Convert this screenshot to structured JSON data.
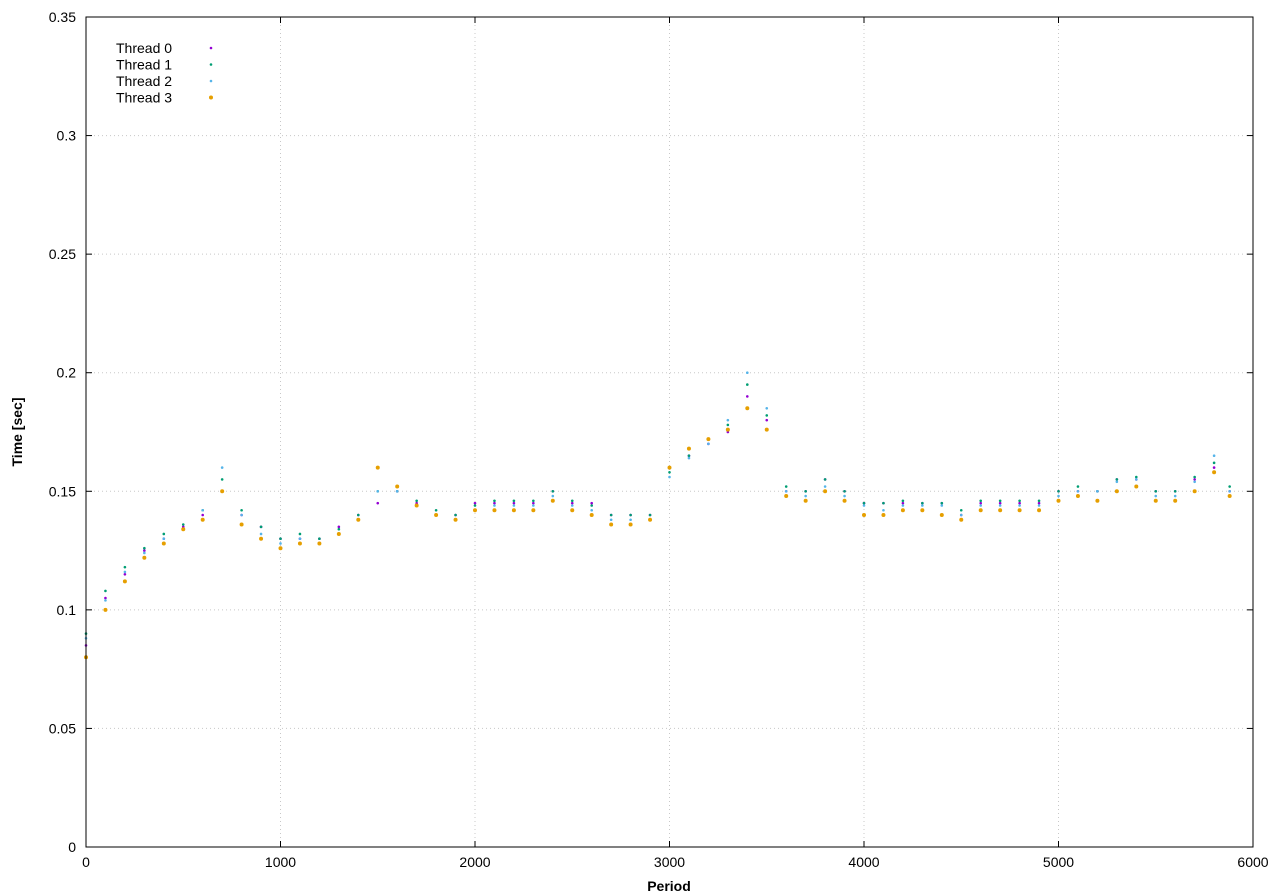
{
  "chart_data": {
    "type": "scatter",
    "title": "",
    "xlabel": "Period",
    "ylabel": "Time [sec]",
    "xlim": [
      0,
      6000
    ],
    "ylim": [
      0,
      0.35
    ],
    "xticks": [
      "0",
      "1000",
      "2000",
      "3000",
      "4000",
      "5000",
      "6000"
    ],
    "yticks": [
      "0",
      "0.05",
      "0.1",
      "0.15",
      "0.2",
      "0.25",
      "0.3",
      "0.35"
    ],
    "grid": true,
    "legend_position": "top-left",
    "series": [
      {
        "name": "Thread 0",
        "color": "#9400d3",
        "marker": "dot",
        "values_x": [
          0,
          100,
          200,
          300,
          400,
          500,
          600,
          700,
          800,
          900,
          1000,
          1100,
          1200,
          1300,
          1400,
          1500,
          1600,
          1700,
          1800,
          1900,
          2000,
          2100,
          2200,
          2300,
          2400,
          2500,
          2600,
          2700,
          2800,
          2900,
          3000,
          3100,
          3200,
          3300,
          3400,
          3500,
          3600,
          3700,
          3800,
          3900,
          4000,
          4100,
          4200,
          4300,
          4400,
          4500,
          4600,
          4700,
          4800,
          4900,
          5000,
          5100,
          5200,
          5300,
          5400,
          5500,
          5600,
          5700,
          5800,
          5880
        ],
        "values_y": [
          0.085,
          0.105,
          0.115,
          0.125,
          0.13,
          0.135,
          0.14,
          0.15,
          0.14,
          0.135,
          0.13,
          0.13,
          0.13,
          0.135,
          0.14,
          0.145,
          0.15,
          0.145,
          0.14,
          0.14,
          0.145,
          0.145,
          0.145,
          0.145,
          0.15,
          0.145,
          0.145,
          0.14,
          0.14,
          0.14,
          0.16,
          0.165,
          0.17,
          0.175,
          0.19,
          0.18,
          0.15,
          0.15,
          0.155,
          0.15,
          0.145,
          0.145,
          0.145,
          0.145,
          0.145,
          0.14,
          0.145,
          0.145,
          0.145,
          0.145,
          0.15,
          0.15,
          0.15,
          0.155,
          0.155,
          0.15,
          0.15,
          0.155,
          0.16,
          0.15
        ]
      },
      {
        "name": "Thread 1",
        "color": "#009e73",
        "marker": "dot",
        "values_x": [
          0,
          100,
          200,
          300,
          400,
          500,
          600,
          700,
          800,
          900,
          1000,
          1100,
          1200,
          1300,
          1400,
          1500,
          1600,
          1700,
          1800,
          1900,
          2000,
          2100,
          2200,
          2300,
          2400,
          2500,
          2600,
          2700,
          2800,
          2900,
          3000,
          3100,
          3200,
          3300,
          3400,
          3500,
          3600,
          3700,
          3800,
          3900,
          4000,
          4100,
          4200,
          4300,
          4400,
          4500,
          4600,
          4700,
          4800,
          4900,
          5000,
          5100,
          5200,
          5300,
          5400,
          5500,
          5600,
          5700,
          5800,
          5880
        ],
        "values_y": [
          0.09,
          0.108,
          0.118,
          0.126,
          0.132,
          0.136,
          0.142,
          0.155,
          0.142,
          0.135,
          0.13,
          0.132,
          0.13,
          0.134,
          0.14,
          0.15,
          0.15,
          0.146,
          0.142,
          0.14,
          0.144,
          0.146,
          0.146,
          0.146,
          0.15,
          0.146,
          0.144,
          0.14,
          0.14,
          0.14,
          0.158,
          0.165,
          0.172,
          0.178,
          0.195,
          0.182,
          0.152,
          0.15,
          0.155,
          0.15,
          0.145,
          0.145,
          0.146,
          0.145,
          0.145,
          0.142,
          0.146,
          0.146,
          0.146,
          0.146,
          0.15,
          0.152,
          0.15,
          0.155,
          0.156,
          0.15,
          0.15,
          0.156,
          0.162,
          0.152
        ]
      },
      {
        "name": "Thread 2",
        "color": "#56b4e9",
        "marker": "dot",
        "values_x": [
          0,
          100,
          200,
          300,
          400,
          500,
          600,
          700,
          800,
          900,
          1000,
          1100,
          1200,
          1300,
          1400,
          1500,
          1600,
          1700,
          1800,
          1900,
          2000,
          2100,
          2200,
          2300,
          2400,
          2500,
          2600,
          2700,
          2800,
          2900,
          3000,
          3100,
          3200,
          3300,
          3400,
          3500,
          3600,
          3700,
          3800,
          3900,
          4000,
          4100,
          4200,
          4300,
          4400,
          4500,
          4600,
          4700,
          4800,
          4900,
          5000,
          5100,
          5200,
          5300,
          5400,
          5500,
          5600,
          5700,
          5800,
          5880
        ],
        "values_y": [
          0.088,
          0.104,
          0.116,
          0.124,
          0.13,
          0.134,
          0.142,
          0.16,
          0.14,
          0.132,
          0.128,
          0.13,
          0.128,
          0.132,
          0.138,
          0.15,
          0.15,
          0.144,
          0.14,
          0.138,
          0.142,
          0.144,
          0.144,
          0.144,
          0.148,
          0.144,
          0.142,
          0.138,
          0.138,
          0.138,
          0.156,
          0.164,
          0.17,
          0.18,
          0.2,
          0.185,
          0.15,
          0.148,
          0.152,
          0.148,
          0.144,
          0.142,
          0.144,
          0.144,
          0.144,
          0.14,
          0.144,
          0.144,
          0.144,
          0.144,
          0.148,
          0.15,
          0.15,
          0.154,
          0.155,
          0.148,
          0.148,
          0.154,
          0.165,
          0.15
        ]
      },
      {
        "name": "Thread 3",
        "color": "#e69f00",
        "marker": "dot",
        "values_x": [
          0,
          100,
          200,
          300,
          400,
          500,
          600,
          700,
          800,
          900,
          1000,
          1100,
          1200,
          1300,
          1400,
          1500,
          1600,
          1700,
          1800,
          1900,
          2000,
          2100,
          2200,
          2300,
          2400,
          2500,
          2600,
          2700,
          2800,
          2900,
          3000,
          3100,
          3200,
          3300,
          3400,
          3500,
          3600,
          3700,
          3800,
          3900,
          4000,
          4100,
          4200,
          4300,
          4400,
          4500,
          4600,
          4700,
          4800,
          4900,
          5000,
          5100,
          5200,
          5300,
          5400,
          5500,
          5600,
          5700,
          5800,
          5880
        ],
        "values_y": [
          0.08,
          0.1,
          0.112,
          0.122,
          0.128,
          0.134,
          0.138,
          0.15,
          0.136,
          0.13,
          0.126,
          0.128,
          0.128,
          0.132,
          0.138,
          0.16,
          0.152,
          0.144,
          0.14,
          0.138,
          0.142,
          0.142,
          0.142,
          0.142,
          0.146,
          0.142,
          0.14,
          0.136,
          0.136,
          0.138,
          0.16,
          0.168,
          0.172,
          0.176,
          0.185,
          0.176,
          0.148,
          0.146,
          0.15,
          0.146,
          0.14,
          0.14,
          0.142,
          0.142,
          0.14,
          0.138,
          0.142,
          0.142,
          0.142,
          0.142,
          0.146,
          0.148,
          0.146,
          0.15,
          0.152,
          0.146,
          0.146,
          0.15,
          0.158,
          0.148
        ]
      }
    ]
  }
}
